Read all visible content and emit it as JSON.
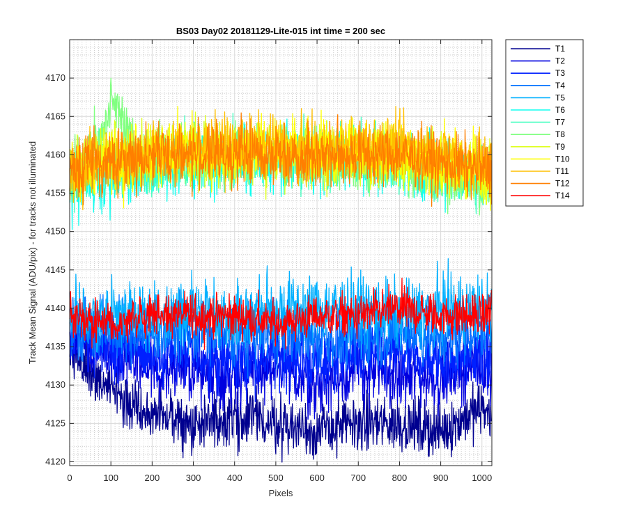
{
  "chart_data": {
    "type": "line",
    "title": "BS03 Day02 20181129-Lite-015 int time = 200 sec",
    "xlabel": "Pixels",
    "ylabel": "Track Mean Signal (ADU/pix) - for tracks not illuminated",
    "xlim": [
      0,
      1024
    ],
    "ylim": [
      4119.5,
      4175
    ],
    "x_ticks": [
      0,
      100,
      200,
      300,
      400,
      500,
      600,
      700,
      800,
      900,
      1000
    ],
    "y_ticks": [
      4120,
      4125,
      4130,
      4135,
      4140,
      4145,
      4150,
      4155,
      4160,
      4165,
      4170
    ],
    "grid": true,
    "minor_grid": true,
    "legend_position": "outside-right",
    "series": [
      {
        "name": "T1",
        "color": "#00008f",
        "mean": [
          [
            0,
            4134
          ],
          [
            60,
            4131
          ],
          [
            120,
            4128
          ],
          [
            200,
            4126
          ],
          [
            300,
            4125
          ],
          [
            400,
            4126
          ],
          [
            500,
            4125
          ],
          [
            600,
            4124
          ],
          [
            700,
            4125
          ],
          [
            800,
            4125
          ],
          [
            900,
            4124
          ],
          [
            1000,
            4127
          ],
          [
            1024,
            4126
          ]
        ],
        "noise": 1.8
      },
      {
        "name": "T2",
        "color": "#0000df",
        "mean": [
          [
            0,
            4137
          ],
          [
            100,
            4134
          ],
          [
            200,
            4132
          ],
          [
            300,
            4132
          ],
          [
            400,
            4131
          ],
          [
            500,
            4132
          ],
          [
            600,
            4130
          ],
          [
            700,
            4132
          ],
          [
            800,
            4131
          ],
          [
            900,
            4131
          ],
          [
            1000,
            4133
          ],
          [
            1024,
            4131
          ]
        ],
        "noise": 2.0
      },
      {
        "name": "T3",
        "color": "#0020ff",
        "mean": [
          [
            0,
            4137
          ],
          [
            100,
            4135
          ],
          [
            200,
            4134
          ],
          [
            300,
            4134
          ],
          [
            400,
            4133
          ],
          [
            500,
            4134
          ],
          [
            600,
            4133
          ],
          [
            700,
            4134
          ],
          [
            800,
            4134
          ],
          [
            900,
            4133
          ],
          [
            1000,
            4134
          ],
          [
            1024,
            4133
          ]
        ],
        "noise": 2.0
      },
      {
        "name": "T4",
        "color": "#0070ff",
        "mean": [
          [
            0,
            4138
          ],
          [
            100,
            4137
          ],
          [
            200,
            4137
          ],
          [
            300,
            4137
          ],
          [
            400,
            4136
          ],
          [
            500,
            4137
          ],
          [
            600,
            4136
          ],
          [
            700,
            4136
          ],
          [
            800,
            4137
          ],
          [
            900,
            4136
          ],
          [
            1000,
            4137
          ],
          [
            1024,
            4137
          ]
        ],
        "noise": 2.0
      },
      {
        "name": "T5",
        "color": "#00b0ff",
        "mean": [
          [
            0,
            4139
          ],
          [
            100,
            4139
          ],
          [
            200,
            4139
          ],
          [
            300,
            4140
          ],
          [
            400,
            4139
          ],
          [
            500,
            4140
          ],
          [
            600,
            4140
          ],
          [
            700,
            4140
          ],
          [
            800,
            4139
          ],
          [
            900,
            4140
          ],
          [
            1000,
            4140
          ],
          [
            1024,
            4140
          ]
        ],
        "noise": 2.2
      },
      {
        "name": "T6",
        "color": "#10ffef",
        "mean": [
          [
            0,
            4156
          ],
          [
            100,
            4157
          ],
          [
            200,
            4158
          ],
          [
            300,
            4159
          ],
          [
            400,
            4159
          ],
          [
            500,
            4159
          ],
          [
            600,
            4159
          ],
          [
            700,
            4159
          ],
          [
            800,
            4159
          ],
          [
            900,
            4158
          ],
          [
            1000,
            4157
          ],
          [
            1024,
            4156
          ]
        ],
        "noise": 2.0
      },
      {
        "name": "T7",
        "color": "#40ffbf",
        "mean": [
          [
            0,
            4157
          ],
          [
            100,
            4159
          ],
          [
            200,
            4159
          ],
          [
            300,
            4160
          ],
          [
            400,
            4160
          ],
          [
            500,
            4160
          ],
          [
            600,
            4160
          ],
          [
            700,
            4160
          ],
          [
            800,
            4159
          ],
          [
            900,
            4158
          ],
          [
            1000,
            4156
          ],
          [
            1024,
            4155
          ]
        ],
        "noise": 2.0
      },
      {
        "name": "T8",
        "color": "#80ff80",
        "mean": [
          [
            0,
            4158
          ],
          [
            80,
            4162
          ],
          [
            100,
            4168
          ],
          [
            120,
            4166
          ],
          [
            160,
            4160
          ],
          [
            300,
            4160
          ],
          [
            500,
            4160
          ],
          [
            700,
            4159
          ],
          [
            800,
            4159
          ],
          [
            900,
            4157
          ],
          [
            1000,
            4156
          ],
          [
            1024,
            4155
          ]
        ],
        "noise": 1.8
      },
      {
        "name": "T9",
        "color": "#dfff20",
        "mean": [
          [
            0,
            4158
          ],
          [
            100,
            4160
          ],
          [
            200,
            4160
          ],
          [
            300,
            4160
          ],
          [
            400,
            4160
          ],
          [
            500,
            4160
          ],
          [
            600,
            4160
          ],
          [
            700,
            4160
          ],
          [
            800,
            4159
          ],
          [
            900,
            4159
          ],
          [
            1000,
            4158
          ],
          [
            1024,
            4157
          ]
        ],
        "noise": 2.0
      },
      {
        "name": "T10",
        "color": "#ffff00",
        "mean": [
          [
            0,
            4158
          ],
          [
            100,
            4159
          ],
          [
            200,
            4160
          ],
          [
            300,
            4161
          ],
          [
            400,
            4160
          ],
          [
            500,
            4161
          ],
          [
            600,
            4160
          ],
          [
            700,
            4161
          ],
          [
            800,
            4160
          ],
          [
            900,
            4159
          ],
          [
            1000,
            4158
          ],
          [
            1024,
            4157
          ]
        ],
        "noise": 2.0
      },
      {
        "name": "T11",
        "color": "#ffbf00",
        "mean": [
          [
            0,
            4158
          ],
          [
            100,
            4159
          ],
          [
            200,
            4160
          ],
          [
            300,
            4161
          ],
          [
            400,
            4161
          ],
          [
            500,
            4161
          ],
          [
            600,
            4160
          ],
          [
            700,
            4161
          ],
          [
            800,
            4161
          ],
          [
            900,
            4160
          ],
          [
            1000,
            4159
          ],
          [
            1024,
            4158
          ]
        ],
        "noise": 2.0
      },
      {
        "name": "T12",
        "color": "#ff7f00",
        "mean": [
          [
            0,
            4158
          ],
          [
            100,
            4159
          ],
          [
            200,
            4160
          ],
          [
            300,
            4160
          ],
          [
            400,
            4160
          ],
          [
            500,
            4160
          ],
          [
            600,
            4160
          ],
          [
            700,
            4160
          ],
          [
            800,
            4160
          ],
          [
            900,
            4159
          ],
          [
            1000,
            4158
          ],
          [
            1024,
            4158
          ]
        ],
        "noise": 2.0
      },
      {
        "name": "T14",
        "color": "#ff0000",
        "mean": [
          [
            0,
            4139
          ],
          [
            100,
            4138
          ],
          [
            200,
            4139
          ],
          [
            300,
            4139
          ],
          [
            400,
            4139
          ],
          [
            500,
            4138
          ],
          [
            600,
            4139
          ],
          [
            700,
            4139
          ],
          [
            800,
            4140
          ],
          [
            900,
            4139
          ],
          [
            1000,
            4139
          ],
          [
            1024,
            4140
          ]
        ],
        "noise": 1.4
      }
    ]
  }
}
